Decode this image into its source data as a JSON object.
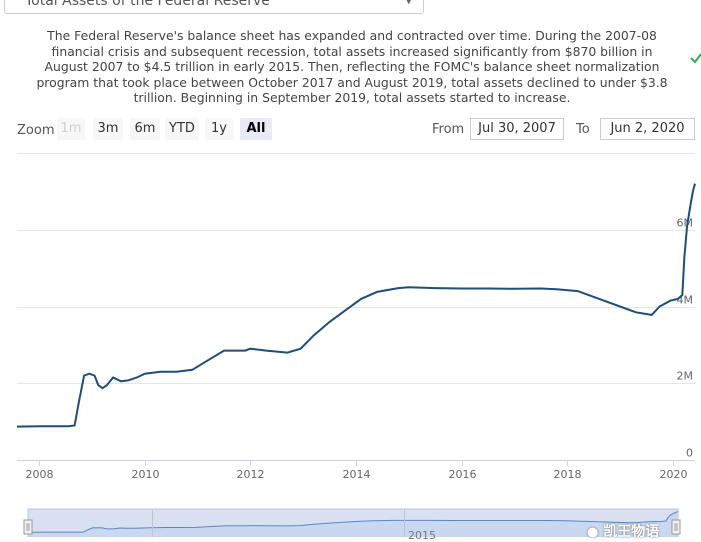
{
  "selector": {
    "value": "Total Assets of the Federal Reserve",
    "chevron_icon": "chevron-down-icon"
  },
  "description": "The Federal Reserve's balance sheet has expanded and contracted over time. During the 2007-08 financial crisis and subsequent recession, total assets increased significantly from $870 billion in August 2007 to $4.5 trillion in early 2015. Then, reflecting the FOMC's balance sheet normalization program that took place between October 2017 and August 2019, total assets declined to under $3.8 trillion. Beginning in September 2019, total assets started to increase.",
  "side_icon": "check-icon",
  "zoom": {
    "label": "Zoom",
    "buttons": [
      {
        "label": "1m",
        "state": "disabled"
      },
      {
        "label": "3m",
        "state": "normal"
      },
      {
        "label": "6m",
        "state": "normal"
      },
      {
        "label": "YTD",
        "state": "normal"
      },
      {
        "label": "1y",
        "state": "normal"
      },
      {
        "label": "All",
        "state": "active"
      }
    ]
  },
  "range": {
    "from_label": "From",
    "from_value": "Jul 30, 2007",
    "to_label": "To",
    "to_value": "Jun 2, 2020"
  },
  "navigator": {
    "year_label": "2015",
    "handle_icons": [
      "left-handle-icon",
      "right-handle-icon"
    ]
  },
  "watermark": {
    "text": "凯王物语",
    "icon": "wechat-icon"
  },
  "colors": {
    "line": "#1f4e79",
    "grid": "#e6e6e6",
    "navigator_mask": "#d4ddf0",
    "navigator_line": "#5b86c4"
  },
  "chart_data": {
    "type": "line",
    "title": "",
    "xlabel": "",
    "ylabel": "",
    "x_ticks": [
      "2008",
      "2010",
      "2012",
      "2014",
      "2016",
      "2018",
      "2020"
    ],
    "y_ticks": [
      "0",
      "2M",
      "4M",
      "6M"
    ],
    "xlim": [
      2007.58,
      2020.42
    ],
    "ylim": [
      0,
      8000000
    ],
    "grid": true,
    "series": [
      {
        "values": [
          [
            2007.58,
            870000
          ],
          [
            2008.0,
            880000
          ],
          [
            2008.3,
            880000
          ],
          [
            2008.55,
            880000
          ],
          [
            2008.67,
            900000
          ],
          [
            2008.75,
            1500000
          ],
          [
            2008.85,
            2200000
          ],
          [
            2008.95,
            2250000
          ],
          [
            2009.05,
            2200000
          ],
          [
            2009.12,
            1950000
          ],
          [
            2009.2,
            1870000
          ],
          [
            2009.28,
            1950000
          ],
          [
            2009.4,
            2150000
          ],
          [
            2009.55,
            2050000
          ],
          [
            2009.7,
            2080000
          ],
          [
            2009.85,
            2150000
          ],
          [
            2010.0,
            2250000
          ],
          [
            2010.3,
            2300000
          ],
          [
            2010.6,
            2300000
          ],
          [
            2010.9,
            2350000
          ],
          [
            2011.2,
            2600000
          ],
          [
            2011.5,
            2850000
          ],
          [
            2011.9,
            2850000
          ],
          [
            2012.0,
            2900000
          ],
          [
            2012.3,
            2850000
          ],
          [
            2012.7,
            2800000
          ],
          [
            2012.95,
            2900000
          ],
          [
            2013.2,
            3250000
          ],
          [
            2013.5,
            3600000
          ],
          [
            2013.8,
            3900000
          ],
          [
            2014.1,
            4200000
          ],
          [
            2014.4,
            4380000
          ],
          [
            2014.8,
            4480000
          ],
          [
            2015.0,
            4500000
          ],
          [
            2015.5,
            4480000
          ],
          [
            2016.0,
            4470000
          ],
          [
            2016.5,
            4470000
          ],
          [
            2017.0,
            4460000
          ],
          [
            2017.5,
            4470000
          ],
          [
            2017.8,
            4450000
          ],
          [
            2018.2,
            4400000
          ],
          [
            2018.6,
            4200000
          ],
          [
            2019.0,
            4000000
          ],
          [
            2019.3,
            3850000
          ],
          [
            2019.6,
            3780000
          ],
          [
            2019.75,
            4000000
          ],
          [
            2019.95,
            4150000
          ],
          [
            2020.1,
            4200000
          ],
          [
            2020.18,
            4300000
          ],
          [
            2020.22,
            5300000
          ],
          [
            2020.27,
            6100000
          ],
          [
            2020.33,
            6600000
          ],
          [
            2020.38,
            7000000
          ],
          [
            2020.42,
            7200000
          ]
        ]
      }
    ]
  }
}
